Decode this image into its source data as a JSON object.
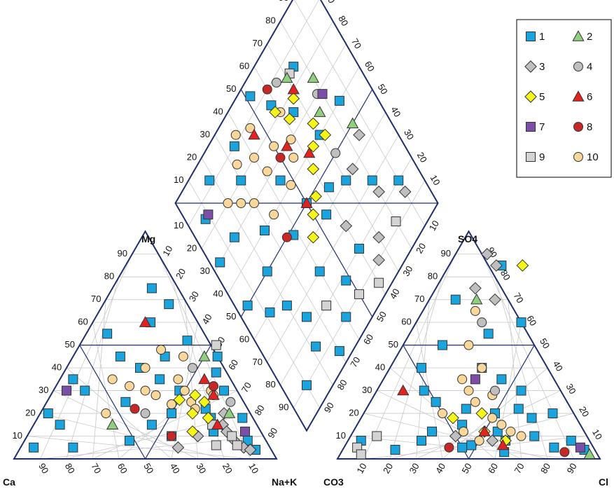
{
  "chart_data": {
    "type": "scatter",
    "subtype": "piper-diagram",
    "title": "",
    "grid": true,
    "legend_position": "top-right",
    "colors": {
      "frame": "#1f2f6e",
      "grid": "#c8c8c8"
    },
    "axis_labels": {
      "mg": "Mg",
      "so4": "SO4",
      "ca": "Ca",
      "nak": "Na+K",
      "co3": "CO3",
      "cl": "Cl"
    },
    "tick_values": [
      "10",
      "20",
      "30",
      "40",
      "50",
      "60",
      "70",
      "80",
      "90"
    ],
    "series": [
      {
        "name": "1",
        "marker": "square",
        "color": "#1aa4de"
      },
      {
        "name": "2",
        "marker": "triangle",
        "color": "#8fcf7e"
      },
      {
        "name": "3",
        "marker": "diamond",
        "color": "#bfbfbf"
      },
      {
        "name": "4",
        "marker": "circle",
        "color": "#bfbfbf"
      },
      {
        "name": "5",
        "marker": "diamond",
        "color": "#f5f51a"
      },
      {
        "name": "6",
        "marker": "triangle",
        "color": "#e52222"
      },
      {
        "name": "7",
        "marker": "square",
        "color": "#7b4fa8"
      },
      {
        "name": "8",
        "marker": "circle",
        "color": "#c62828"
      },
      {
        "name": "9",
        "marker": "square",
        "color": "#d3d3d3"
      },
      {
        "name": "10",
        "marker": "circle",
        "color": "#f9d79a"
      }
    ],
    "cation_points": [
      [
        1,
        40,
        52
      ],
      [
        1,
        10,
        15
      ],
      [
        1,
        62,
        22
      ],
      [
        1,
        85,
        8
      ],
      [
        1,
        5,
        35
      ],
      [
        1,
        55,
        45
      ],
      [
        1,
        48,
        30
      ],
      [
        1,
        70,
        12
      ],
      [
        1,
        22,
        60
      ],
      [
        1,
        30,
        25
      ],
      [
        1,
        15,
        75
      ],
      [
        1,
        65,
        30
      ],
      [
        1,
        35,
        45
      ],
      [
        1,
        78,
        18
      ],
      [
        1,
        20,
        5
      ],
      [
        1,
        8,
        55
      ],
      [
        1,
        45,
        15
      ],
      [
        1,
        55,
        10
      ],
      [
        1,
        58,
        38
      ],
      [
        1,
        28,
        40
      ],
      [
        1,
        5,
        5
      ],
      [
        1,
        90,
        4
      ],
      [
        1,
        40,
        8
      ],
      [
        1,
        12,
        30
      ],
      [
        1,
        18,
        45
      ],
      [
        1,
        50,
        20
      ],
      [
        1,
        66,
        18
      ],
      [
        1,
        25,
        68
      ],
      [
        1,
        3,
        20
      ],
      [
        1,
        38,
        35
      ],
      [
        10,
        30,
        40
      ],
      [
        10,
        25,
        20
      ],
      [
        10,
        45,
        35
      ],
      [
        10,
        55,
        25
      ],
      [
        10,
        40,
        28
      ],
      [
        10,
        60,
        30
      ],
      [
        10,
        35,
        30
      ],
      [
        10,
        20,
        35
      ],
      [
        10,
        50,
        30
      ],
      [
        10,
        62,
        28
      ],
      [
        10,
        28,
        32
      ],
      [
        10,
        48,
        24
      ],
      [
        10,
        42,
        45
      ],
      [
        10,
        58,
        22
      ],
      [
        10,
        32,
        48
      ],
      [
        3,
        80,
        8
      ],
      [
        3,
        72,
        15
      ],
      [
        3,
        65,
        10
      ],
      [
        3,
        85,
        5
      ],
      [
        3,
        70,
        20
      ],
      [
        3,
        88,
        4
      ],
      [
        3,
        75,
        12
      ],
      [
        3,
        60,
        5
      ],
      [
        9,
        78,
        10
      ],
      [
        9,
        68,
        15
      ],
      [
        9,
        82,
        6
      ],
      [
        9,
        52,
        50
      ],
      [
        9,
        74,
        6
      ],
      [
        5,
        60,
        25
      ],
      [
        5,
        55,
        28
      ],
      [
        5,
        65,
        18
      ],
      [
        5,
        50,
        26
      ],
      [
        5,
        62,
        12
      ],
      [
        5,
        58,
        20
      ],
      [
        6,
        62,
        28
      ],
      [
        6,
        55,
        35
      ],
      [
        6,
        70,
        15
      ],
      [
        6,
        20,
        60
      ],
      [
        8,
        60,
        32
      ],
      [
        8,
        55,
        10
      ],
      [
        8,
        35,
        22
      ],
      [
        2,
        72,
        20
      ],
      [
        2,
        50,
        45
      ],
      [
        2,
        30,
        15
      ],
      [
        4,
        48,
        40
      ],
      [
        4,
        70,
        25
      ],
      [
        4,
        40,
        20
      ],
      [
        7,
        5,
        30
      ],
      [
        7,
        82,
        12
      ]
    ],
    "anion_points": [
      [
        1,
        45,
        5
      ],
      [
        1,
        60,
        8
      ],
      [
        1,
        30,
        12
      ],
      [
        1,
        20,
        4
      ],
      [
        1,
        70,
        10
      ],
      [
        1,
        50,
        20
      ],
      [
        1,
        15,
        50
      ],
      [
        1,
        35,
        40
      ],
      [
        1,
        55,
        30
      ],
      [
        1,
        80,
        5
      ],
      [
        1,
        25,
        25
      ],
      [
        1,
        65,
        18
      ],
      [
        1,
        40,
        15
      ],
      [
        1,
        10,
        70
      ],
      [
        1,
        85,
        8
      ],
      [
        1,
        30,
        55
      ],
      [
        1,
        45,
        35
      ],
      [
        1,
        20,
        85
      ],
      [
        1,
        5,
        8
      ],
      [
        1,
        92,
        4
      ],
      [
        1,
        55,
        12
      ],
      [
        1,
        38,
        22
      ],
      [
        1,
        62,
        3
      ],
      [
        1,
        18,
        30
      ],
      [
        1,
        48,
        6
      ],
      [
        1,
        72,
        20
      ],
      [
        1,
        28,
        8
      ],
      [
        1,
        12,
        40
      ],
      [
        1,
        40,
        60
      ],
      [
        1,
        58,
        22
      ],
      [
        10,
        50,
        18
      ],
      [
        10,
        40,
        25
      ],
      [
        10,
        60,
        12
      ],
      [
        10,
        30,
        20
      ],
      [
        10,
        45,
        28
      ],
      [
        10,
        55,
        15
      ],
      [
        10,
        35,
        30
      ],
      [
        10,
        25,
        50
      ],
      [
        10,
        65,
        10
      ],
      [
        10,
        35,
        40
      ],
      [
        10,
        20,
        65
      ],
      [
        10,
        50,
        8
      ],
      [
        10,
        42,
        12
      ],
      [
        10,
        30,
        35
      ],
      [
        3,
        18,
        85
      ],
      [
        3,
        15,
        75
      ],
      [
        3,
        12,
        90
      ],
      [
        3,
        25,
        70
      ],
      [
        3,
        55,
        8
      ],
      [
        3,
        40,
        10
      ],
      [
        9,
        5,
        5
      ],
      [
        9,
        10,
        10
      ],
      [
        9,
        8,
        2
      ],
      [
        5,
        50,
        12
      ],
      [
        5,
        60,
        8
      ],
      [
        5,
        35,
        18
      ],
      [
        5,
        28,
        85
      ],
      [
        5,
        45,
        20
      ],
      [
        6,
        10,
        30
      ],
      [
        6,
        60,
        6
      ],
      [
        6,
        50,
        12
      ],
      [
        8,
        85,
        3
      ],
      [
        8,
        40,
        5
      ],
      [
        2,
        95,
        2
      ],
      [
        2,
        18,
        70
      ],
      [
        4,
        25,
        60
      ],
      [
        4,
        45,
        30
      ],
      [
        7,
        90,
        5
      ],
      [
        7,
        35,
        35
      ]
    ],
    "diamond_points": [
      [
        1,
        40,
        30
      ],
      [
        1,
        10,
        10
      ],
      [
        1,
        20,
        50
      ],
      [
        1,
        60,
        20
      ],
      [
        1,
        70,
        60
      ],
      [
        1,
        30,
        80
      ],
      [
        1,
        50,
        50
      ],
      [
        1,
        15,
        70
      ],
      [
        1,
        80,
        30
      ],
      [
        1,
        25,
        25
      ],
      [
        1,
        45,
        65
      ],
      [
        1,
        35,
        90
      ],
      [
        1,
        8,
        85
      ],
      [
        1,
        55,
        40
      ],
      [
        1,
        65,
        75
      ],
      [
        1,
        20,
        35
      ],
      [
        1,
        5,
        50
      ],
      [
        1,
        75,
        85
      ],
      [
        1,
        40,
        10
      ],
      [
        1,
        28,
        60
      ],
      [
        1,
        12,
        40
      ],
      [
        1,
        58,
        85
      ],
      [
        1,
        48,
        18
      ],
      [
        1,
        85,
        60
      ],
      [
        1,
        30,
        5
      ],
      [
        1,
        62,
        45
      ],
      [
        1,
        18,
        92
      ],
      [
        1,
        90,
        20
      ],
      [
        1,
        38,
        48
      ],
      [
        1,
        70,
        40
      ],
      [
        1,
        4,
        70
      ],
      [
        1,
        52,
        95
      ],
      [
        1,
        22,
        15
      ],
      [
        10,
        40,
        80
      ],
      [
        10,
        30,
        70
      ],
      [
        10,
        50,
        75
      ],
      [
        10,
        45,
        88
      ],
      [
        10,
        35,
        60
      ],
      [
        10,
        55,
        65
      ],
      [
        10,
        25,
        75
      ],
      [
        10,
        60,
        80
      ],
      [
        10,
        42,
        72
      ],
      [
        10,
        38,
        92
      ],
      [
        10,
        48,
        60
      ],
      [
        10,
        32,
        85
      ],
      [
        10,
        20,
        80
      ],
      [
        10,
        58,
        70
      ],
      [
        3,
        80,
        25
      ],
      [
        3,
        70,
        15
      ],
      [
        3,
        75,
        40
      ],
      [
        3,
        65,
        10
      ],
      [
        3,
        85,
        45
      ],
      [
        3,
        60,
        30
      ],
      [
        3,
        90,
        15
      ],
      [
        9,
        50,
        10
      ],
      [
        9,
        35,
        20
      ],
      [
        9,
        60,
        5
      ],
      [
        9,
        72,
        85
      ],
      [
        9,
        80,
        12
      ],
      [
        5,
        60,
        55
      ],
      [
        5,
        65,
        60
      ],
      [
        5,
        55,
        48
      ],
      [
        5,
        70,
        65
      ],
      [
        5,
        50,
        45
      ],
      [
        5,
        62,
        75
      ],
      [
        5,
        58,
        82
      ],
      [
        5,
        72,
        58
      ],
      [
        5,
        45,
        40
      ],
      [
        5,
        68,
        78
      ],
      [
        6,
        55,
        70
      ],
      [
        6,
        62,
        60
      ],
      [
        6,
        50,
        50
      ],
      [
        6,
        70,
        80
      ],
      [
        6,
        45,
        85
      ],
      [
        8,
        50,
        70
      ],
      [
        8,
        60,
        90
      ],
      [
        8,
        35,
        50
      ],
      [
        2,
        75,
        65
      ],
      [
        2,
        80,
        75
      ],
      [
        2,
        85,
        50
      ],
      [
        2,
        70,
        85
      ],
      [
        4,
        78,
        70
      ],
      [
        4,
        65,
        88
      ],
      [
        4,
        72,
        50
      ],
      [
        7,
        10,
        85
      ],
      [
        7,
        80,
        68
      ]
    ]
  },
  "legend": {
    "items": [
      {
        "label": "1",
        "icon": "square-icon"
      },
      {
        "label": "2",
        "icon": "triangle-icon"
      },
      {
        "label": "3",
        "icon": "diamond-icon"
      },
      {
        "label": "4",
        "icon": "circle-icon"
      },
      {
        "label": "5",
        "icon": "diamond-icon"
      },
      {
        "label": "6",
        "icon": "triangle-icon"
      },
      {
        "label": "7",
        "icon": "square-icon"
      },
      {
        "label": "8",
        "icon": "circle-icon"
      },
      {
        "label": "9",
        "icon": "square-icon"
      },
      {
        "label": "10",
        "icon": "circle-icon"
      }
    ]
  }
}
